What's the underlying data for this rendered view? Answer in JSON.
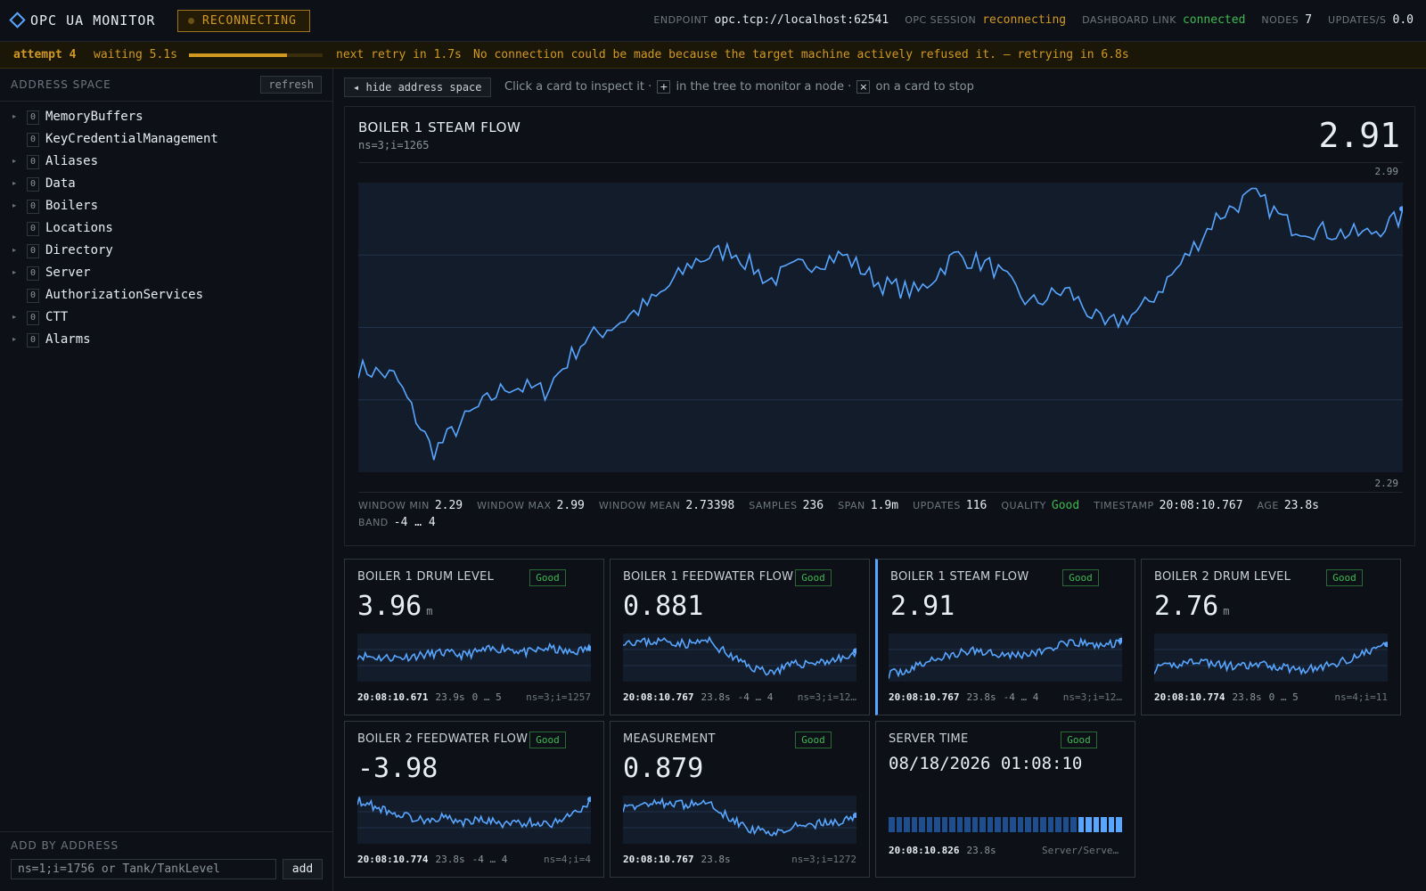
{
  "header": {
    "title": "OPC UA MONITOR",
    "state": "RECONNECTING",
    "stats": [
      {
        "label": "ENDPOINT",
        "value": "opc.tcp://localhost:62541",
        "tone": ""
      },
      {
        "label": "OPC SESSION",
        "value": "reconnecting",
        "tone": "warn"
      },
      {
        "label": "DASHBOARD LINK",
        "value": "connected",
        "tone": "good"
      },
      {
        "label": "NODES",
        "value": "7",
        "tone": ""
      },
      {
        "label": "UPDATES/S",
        "value": "0.0",
        "tone": ""
      }
    ]
  },
  "retry": {
    "attempt": "attempt 4",
    "waiting": "waiting 5.1s",
    "progress": 0.73,
    "next": "next retry in 1.7s",
    "message": "No connection could be made because the target machine actively refused it. — retrying in 6.8s"
  },
  "sidebar": {
    "title": "ADDRESS SPACE",
    "refresh_label": "refresh",
    "items": [
      {
        "label": "MemoryBuffers",
        "ns": "0",
        "expandable": true
      },
      {
        "label": "KeyCredentialManagement",
        "ns": "0",
        "expandable": false
      },
      {
        "label": "Aliases",
        "ns": "0",
        "expandable": true
      },
      {
        "label": "Data",
        "ns": "0",
        "expandable": true
      },
      {
        "label": "Boilers",
        "ns": "0",
        "expandable": true
      },
      {
        "label": "Locations",
        "ns": "0",
        "expandable": false
      },
      {
        "label": "Directory",
        "ns": "0",
        "expandable": true
      },
      {
        "label": "Server",
        "ns": "0",
        "expandable": true
      },
      {
        "label": "AuthorizationServices",
        "ns": "0",
        "expandable": false
      },
      {
        "label": "CTT",
        "ns": "0",
        "expandable": true
      },
      {
        "label": "Alarms",
        "ns": "0",
        "expandable": true
      }
    ],
    "add_title": "ADD BY ADDRESS",
    "add_placeholder": "ns=1;i=1756 or Tank/TankLevel",
    "add_label": "add"
  },
  "main": {
    "hide_label": "◂ hide address space",
    "hint_1": "Click a card to inspect it ·",
    "hint_2": "in the tree to monitor a node ·",
    "hint_3": "on a card to stop",
    "kbd_plus": "+",
    "kbd_x": "×"
  },
  "detail": {
    "title": "BOILER 1 STEAM FLOW",
    "node": "ns=3;i=1265",
    "value": "2.91",
    "y_max": "2.99",
    "y_min": "2.29",
    "stats": [
      {
        "label": "WINDOW MIN",
        "value": "2.29",
        "tone": ""
      },
      {
        "label": "WINDOW MAX",
        "value": "2.99",
        "tone": ""
      },
      {
        "label": "WINDOW MEAN",
        "value": "2.73398",
        "tone": ""
      },
      {
        "label": "SAMPLES",
        "value": "236",
        "tone": ""
      },
      {
        "label": "SPAN",
        "value": "1.9m",
        "tone": ""
      },
      {
        "label": "UPDATES",
        "value": "116",
        "tone": ""
      },
      {
        "label": "QUALITY",
        "value": "Good",
        "tone": "good"
      },
      {
        "label": "TIMESTAMP",
        "value": "20:08:10.767",
        "tone": ""
      },
      {
        "label": "AGE",
        "value": "23.8s",
        "tone": ""
      },
      {
        "label": "BAND",
        "value": "-4 … 4",
        "tone": ""
      }
    ],
    "chart_color": "#58a6ff"
  },
  "cards": [
    {
      "title": "BOILER 1 DRUM LEVEL",
      "quality": "Good",
      "value": "3.96",
      "unit": "m",
      "time": "20:08:10.671",
      "age": "23.9s",
      "band": "0 … 5",
      "node": "ns=3;i=1257",
      "selected": false
    },
    {
      "title": "BOILER 1 FEEDWATER FLOW",
      "quality": "Good",
      "value": "0.881",
      "unit": "",
      "time": "20:08:10.767",
      "age": "23.8s",
      "band": "-4 … 4",
      "node": "ns=3;i=12…",
      "selected": false
    },
    {
      "title": "BOILER 1 STEAM FLOW",
      "quality": "Good",
      "value": "2.91",
      "unit": "",
      "time": "20:08:10.767",
      "age": "23.8s",
      "band": "-4 … 4",
      "node": "ns=3;i=12…",
      "selected": true
    },
    {
      "title": "BOILER 2 DRUM LEVEL",
      "quality": "Good",
      "value": "2.76",
      "unit": "m",
      "time": "20:08:10.774",
      "age": "23.8s",
      "band": "0 … 5",
      "node": "ns=4;i=11",
      "selected": false
    },
    {
      "title": "BOILER 2 FEEDWATER FLOW",
      "quality": "Good",
      "value": "-3.98",
      "unit": "",
      "time": "20:08:10.774",
      "age": "23.8s",
      "band": "-4 … 4",
      "node": "ns=4;i=4",
      "selected": false
    },
    {
      "title": "MEASUREMENT",
      "quality": "Good",
      "value": "0.879",
      "unit": "",
      "time": "20:08:10.767",
      "age": "23.8s",
      "band": "",
      "node": "ns=3;i=1272",
      "selected": false
    }
  ],
  "server_time": {
    "title": "SERVER TIME",
    "quality": "Good",
    "datetime": "08/18/2026 01:08:10",
    "time": "20:08:10.826",
    "age": "23.8s",
    "node": "Server/ServerSt…u…"
  }
}
